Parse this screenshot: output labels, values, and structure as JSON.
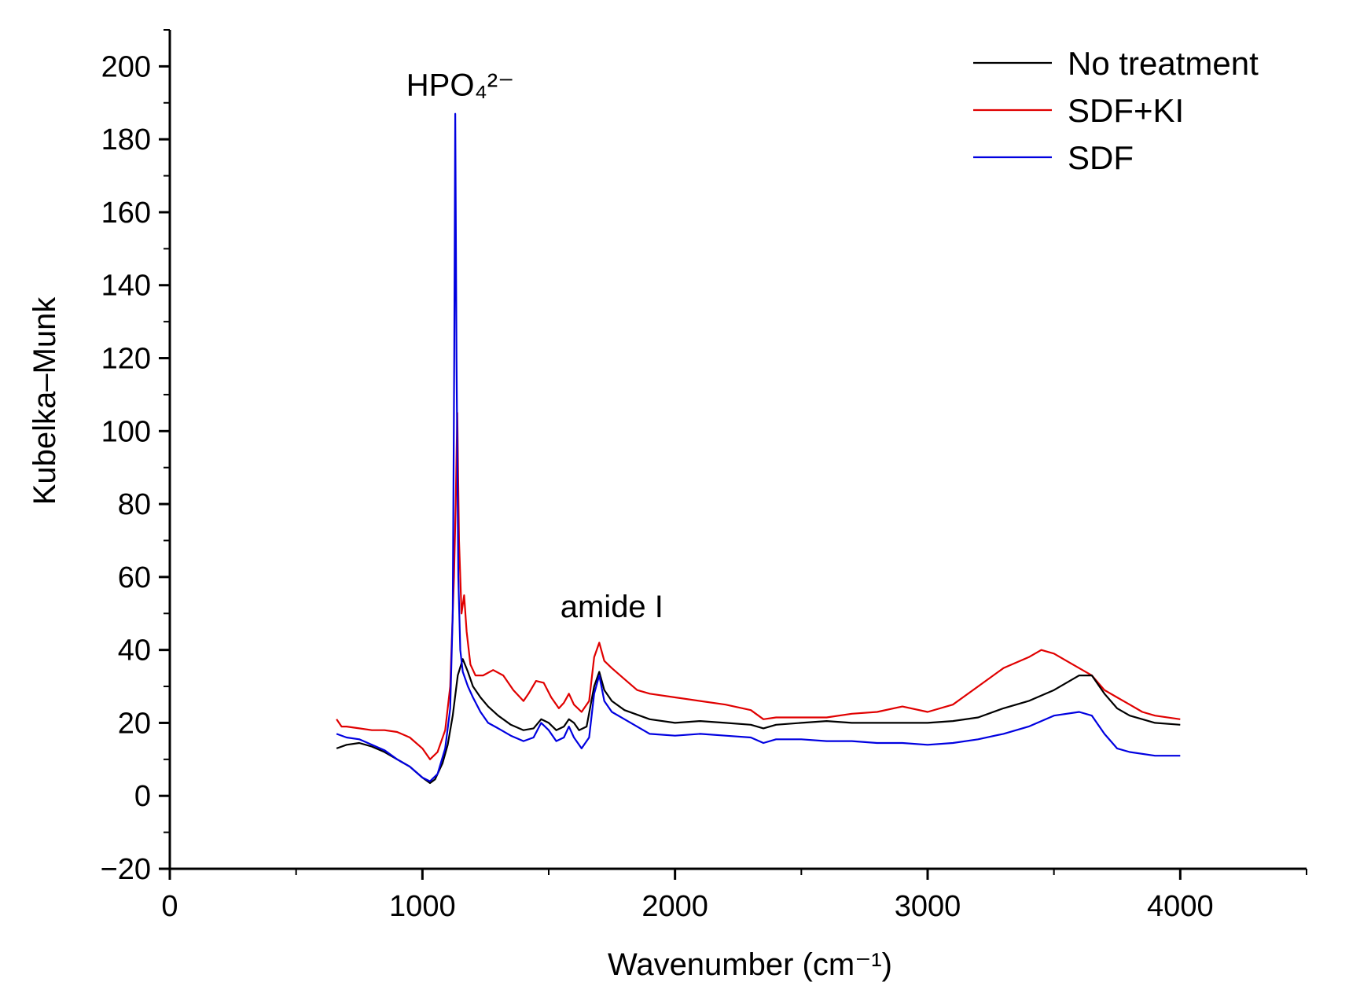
{
  "chart_data": {
    "type": "line",
    "title": "",
    "xlabel": "Wavenumber (cm⁻¹)",
    "ylabel": "Kubelka–Munk",
    "xlim": [
      0,
      4500
    ],
    "ylim": [
      -20,
      210
    ],
    "x_ticks": [
      0,
      1000,
      2000,
      3000,
      4000
    ],
    "y_ticks": [
      -20,
      0,
      20,
      40,
      60,
      80,
      100,
      120,
      140,
      160,
      180,
      200
    ],
    "x_tick_labels": [
      "0",
      "1000",
      "2000",
      "3000",
      "4000"
    ],
    "y_tick_labels": [
      "−20",
      "0",
      "20",
      "40",
      "60",
      "80",
      "100",
      "120",
      "140",
      "160",
      "180",
      "200"
    ],
    "grid": false,
    "legend_position": "top-right",
    "annotations": [
      {
        "text": "HPO₄²⁻",
        "x": 1150,
        "y": 195
      },
      {
        "text": "amide I",
        "x": 1750,
        "y": 52
      }
    ],
    "series": [
      {
        "name": "No treatment",
        "color": "#000000",
        "points": [
          [
            660,
            13
          ],
          [
            700,
            14
          ],
          [
            750,
            14.5
          ],
          [
            800,
            13.5
          ],
          [
            850,
            12
          ],
          [
            900,
            10
          ],
          [
            950,
            8
          ],
          [
            1000,
            5
          ],
          [
            1030,
            3.5
          ],
          [
            1050,
            4.5
          ],
          [
            1080,
            9
          ],
          [
            1100,
            14
          ],
          [
            1120,
            22
          ],
          [
            1140,
            33
          ],
          [
            1160,
            37.5
          ],
          [
            1180,
            34
          ],
          [
            1200,
            30
          ],
          [
            1230,
            27
          ],
          [
            1260,
            24.5
          ],
          [
            1300,
            22
          ],
          [
            1350,
            19.5
          ],
          [
            1400,
            18
          ],
          [
            1440,
            18.5
          ],
          [
            1470,
            21
          ],
          [
            1500,
            20
          ],
          [
            1530,
            18
          ],
          [
            1560,
            19
          ],
          [
            1580,
            21
          ],
          [
            1600,
            20
          ],
          [
            1620,
            18
          ],
          [
            1650,
            19
          ],
          [
            1680,
            30
          ],
          [
            1700,
            34
          ],
          [
            1720,
            29
          ],
          [
            1750,
            26
          ],
          [
            1800,
            23.5
          ],
          [
            1900,
            21
          ],
          [
            2000,
            20
          ],
          [
            2100,
            20.5
          ],
          [
            2200,
            20
          ],
          [
            2300,
            19.5
          ],
          [
            2350,
            18.5
          ],
          [
            2400,
            19.5
          ],
          [
            2500,
            20
          ],
          [
            2600,
            20.5
          ],
          [
            2700,
            20
          ],
          [
            2800,
            20
          ],
          [
            2900,
            20
          ],
          [
            3000,
            20
          ],
          [
            3100,
            20.5
          ],
          [
            3200,
            21.5
          ],
          [
            3300,
            24
          ],
          [
            3400,
            26
          ],
          [
            3500,
            29
          ],
          [
            3600,
            33
          ],
          [
            3650,
            33
          ],
          [
            3700,
            28
          ],
          [
            3750,
            24
          ],
          [
            3800,
            22
          ],
          [
            3900,
            20
          ],
          [
            4000,
            19.5
          ]
        ]
      },
      {
        "name": "SDF+KI",
        "color": "#e00000",
        "points": [
          [
            660,
            21
          ],
          [
            680,
            19
          ],
          [
            700,
            19
          ],
          [
            750,
            18.5
          ],
          [
            800,
            18
          ],
          [
            850,
            18
          ],
          [
            900,
            17.5
          ],
          [
            950,
            16
          ],
          [
            1000,
            13
          ],
          [
            1030,
            10
          ],
          [
            1060,
            12
          ],
          [
            1090,
            18
          ],
          [
            1110,
            30
          ],
          [
            1125,
            60
          ],
          [
            1132,
            80
          ],
          [
            1138,
            105
          ],
          [
            1145,
            70
          ],
          [
            1155,
            50
          ],
          [
            1165,
            55
          ],
          [
            1175,
            45
          ],
          [
            1190,
            36
          ],
          [
            1210,
            33
          ],
          [
            1240,
            33
          ],
          [
            1280,
            34.5
          ],
          [
            1320,
            33
          ],
          [
            1360,
            29
          ],
          [
            1400,
            26
          ],
          [
            1420,
            28
          ],
          [
            1450,
            31.5
          ],
          [
            1480,
            31
          ],
          [
            1510,
            27
          ],
          [
            1540,
            24
          ],
          [
            1560,
            25.5
          ],
          [
            1580,
            28
          ],
          [
            1600,
            25
          ],
          [
            1630,
            23
          ],
          [
            1660,
            26
          ],
          [
            1680,
            38
          ],
          [
            1700,
            42
          ],
          [
            1720,
            37
          ],
          [
            1750,
            35
          ],
          [
            1800,
            32
          ],
          [
            1850,
            29
          ],
          [
            1900,
            28
          ],
          [
            2000,
            27
          ],
          [
            2100,
            26
          ],
          [
            2200,
            25
          ],
          [
            2300,
            23.5
          ],
          [
            2350,
            21
          ],
          [
            2400,
            21.5
          ],
          [
            2500,
            21.5
          ],
          [
            2600,
            21.5
          ],
          [
            2700,
            22.5
          ],
          [
            2800,
            23
          ],
          [
            2900,
            24.5
          ],
          [
            3000,
            23
          ],
          [
            3100,
            25
          ],
          [
            3200,
            30
          ],
          [
            3300,
            35
          ],
          [
            3400,
            38
          ],
          [
            3450,
            40
          ],
          [
            3500,
            39
          ],
          [
            3550,
            37
          ],
          [
            3600,
            35
          ],
          [
            3650,
            33
          ],
          [
            3700,
            29
          ],
          [
            3750,
            27
          ],
          [
            3800,
            25
          ],
          [
            3850,
            23
          ],
          [
            3900,
            22
          ],
          [
            4000,
            21
          ]
        ]
      },
      {
        "name": "SDF",
        "color": "#0000e0",
        "points": [
          [
            660,
            17
          ],
          [
            700,
            16
          ],
          [
            750,
            15.5
          ],
          [
            800,
            14
          ],
          [
            850,
            12.5
          ],
          [
            900,
            10
          ],
          [
            950,
            8
          ],
          [
            1000,
            5
          ],
          [
            1030,
            4
          ],
          [
            1060,
            6
          ],
          [
            1090,
            13
          ],
          [
            1110,
            24
          ],
          [
            1120,
            50
          ],
          [
            1126,
            120
          ],
          [
            1130,
            187
          ],
          [
            1135,
            120
          ],
          [
            1142,
            60
          ],
          [
            1150,
            40
          ],
          [
            1160,
            34
          ],
          [
            1180,
            30
          ],
          [
            1200,
            27
          ],
          [
            1230,
            23
          ],
          [
            1260,
            20
          ],
          [
            1300,
            18.5
          ],
          [
            1350,
            16.5
          ],
          [
            1400,
            15
          ],
          [
            1440,
            16
          ],
          [
            1470,
            20
          ],
          [
            1500,
            18
          ],
          [
            1530,
            15
          ],
          [
            1560,
            16
          ],
          [
            1580,
            19
          ],
          [
            1600,
            16
          ],
          [
            1630,
            13
          ],
          [
            1660,
            16
          ],
          [
            1680,
            28
          ],
          [
            1700,
            33
          ],
          [
            1720,
            26
          ],
          [
            1750,
            23
          ],
          [
            1800,
            21
          ],
          [
            1900,
            17
          ],
          [
            2000,
            16.5
          ],
          [
            2100,
            17
          ],
          [
            2200,
            16.5
          ],
          [
            2300,
            16
          ],
          [
            2350,
            14.5
          ],
          [
            2400,
            15.5
          ],
          [
            2500,
            15.5
          ],
          [
            2600,
            15
          ],
          [
            2700,
            15
          ],
          [
            2800,
            14.5
          ],
          [
            2900,
            14.5
          ],
          [
            3000,
            14
          ],
          [
            3100,
            14.5
          ],
          [
            3200,
            15.5
          ],
          [
            3300,
            17
          ],
          [
            3400,
            19
          ],
          [
            3500,
            22
          ],
          [
            3600,
            23
          ],
          [
            3650,
            22
          ],
          [
            3700,
            17
          ],
          [
            3750,
            13
          ],
          [
            3800,
            12
          ],
          [
            3900,
            11
          ],
          [
            4000,
            11
          ]
        ]
      }
    ]
  }
}
